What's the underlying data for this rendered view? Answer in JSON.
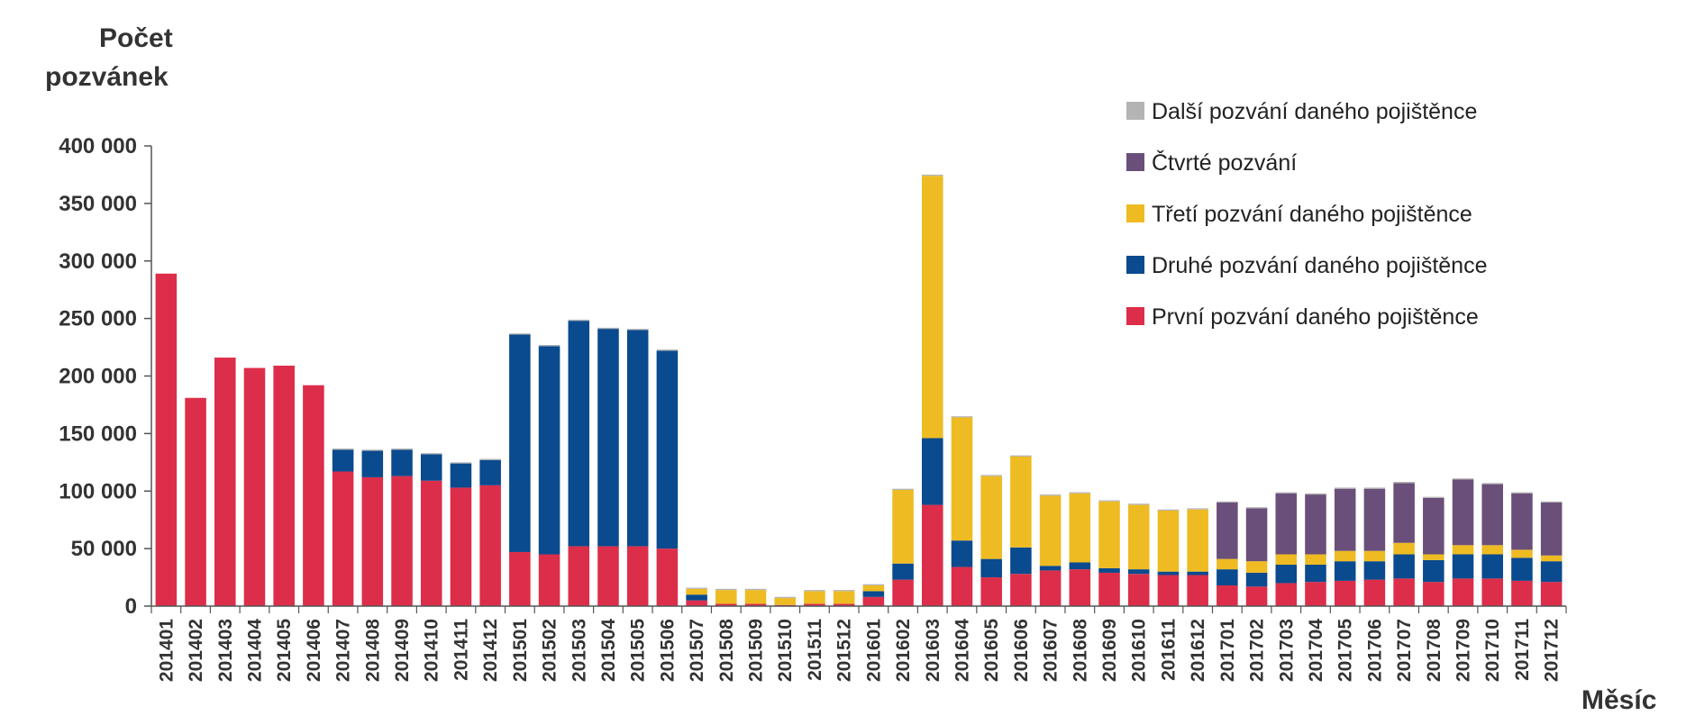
{
  "chart_data": {
    "type": "bar",
    "stacked": true,
    "ylabel": "Počet pozvánek",
    "ylabel_lines": [
      "Počet",
      "pozvánek"
    ],
    "xlabel": "Měsíc",
    "ylim": [
      0,
      400000
    ],
    "yticks": [
      {
        "value": 0,
        "label": "0"
      },
      {
        "value": 50000,
        "label": "50 000"
      },
      {
        "value": 100000,
        "label": "100 000"
      },
      {
        "value": 150000,
        "label": "150 000"
      },
      {
        "value": 200000,
        "label": "200 000"
      },
      {
        "value": 250000,
        "label": "250 000"
      },
      {
        "value": 300000,
        "label": "300 000"
      },
      {
        "value": 350000,
        "label": "350 000"
      },
      {
        "value": 400000,
        "label": "400 000"
      }
    ],
    "legend_position": "top-right",
    "categories": [
      "201401",
      "201402",
      "201403",
      "201404",
      "201405",
      "201406",
      "201407",
      "201408",
      "201409",
      "201410",
      "201411",
      "201412",
      "201501",
      "201502",
      "201503",
      "201504",
      "201505",
      "201506",
      "201507",
      "201508",
      "201509",
      "201510",
      "201511",
      "201512",
      "201601",
      "201602",
      "201603",
      "201604",
      "201605",
      "201606",
      "201607",
      "201608",
      "201609",
      "201610",
      "201611",
      "201612",
      "201701",
      "201702",
      "201703",
      "201704",
      "201705",
      "201706",
      "201707",
      "201708",
      "201709",
      "201710",
      "201711",
      "201712"
    ],
    "series": [
      {
        "name": "První pozvání daného pojištěnce",
        "color": "#DC2E4A",
        "values": [
          289000,
          181000,
          216000,
          207000,
          209000,
          192000,
          117000,
          112000,
          113000,
          109000,
          103000,
          105000,
          47000,
          45000,
          52000,
          52000,
          52000,
          50000,
          5000,
          2000,
          2000,
          1000,
          2000,
          2000,
          8000,
          23000,
          88000,
          34000,
          25000,
          28000,
          31000,
          32000,
          29000,
          28000,
          27000,
          27000,
          18000,
          17000,
          20000,
          21000,
          22000,
          23000,
          24000,
          21000,
          24000,
          24000,
          22000,
          21000
        ]
      },
      {
        "name": "Druhé pozvání daného pojištěnce",
        "color": "#0A4A8E",
        "values": [
          0,
          0,
          0,
          0,
          0,
          0,
          19000,
          23000,
          23000,
          23000,
          21000,
          22000,
          189000,
          181000,
          196000,
          189000,
          188000,
          172000,
          5000,
          0,
          0,
          0,
          0,
          0,
          5000,
          14000,
          58000,
          23000,
          16000,
          23000,
          4000,
          6000,
          4000,
          4000,
          3000,
          3000,
          14000,
          12000,
          16000,
          15000,
          17000,
          16000,
          21000,
          19000,
          21000,
          21000,
          20000,
          18000
        ]
      },
      {
        "name": "Třetí pozvání daného pojištěnce",
        "color": "#EEBB22",
        "values": [
          0,
          0,
          0,
          0,
          0,
          0,
          0,
          0,
          0,
          0,
          0,
          0,
          0,
          0,
          0,
          0,
          0,
          0,
          5000,
          12000,
          12000,
          6000,
          11000,
          11000,
          5000,
          64000,
          228000,
          107000,
          72000,
          79000,
          61000,
          60000,
          58000,
          56000,
          53000,
          54000,
          9000,
          10000,
          9000,
          9000,
          9000,
          9000,
          10000,
          5000,
          8000,
          8000,
          7000,
          5000
        ]
      },
      {
        "name": "Čtvrté pozvání",
        "color": "#6A4F7A",
        "values": [
          0,
          0,
          0,
          0,
          0,
          0,
          0,
          0,
          0,
          0,
          0,
          0,
          0,
          0,
          0,
          0,
          0,
          0,
          0,
          0,
          0,
          0,
          0,
          0,
          0,
          0,
          0,
          0,
          0,
          0,
          0,
          0,
          0,
          0,
          0,
          0,
          49000,
          46000,
          53000,
          52000,
          54000,
          54000,
          52000,
          49000,
          57000,
          53000,
          49000,
          46000
        ]
      },
      {
        "name": "Další pozvání daného pojištěnce",
        "color": "#B4B4B4",
        "values": [
          0,
          0,
          0,
          0,
          0,
          0,
          1000,
          1000,
          1000,
          1000,
          1000,
          1000,
          1000,
          1000,
          1000,
          1000,
          1000,
          1000,
          1000,
          1000,
          1000,
          1000,
          1000,
          1000,
          1000,
          1000,
          1000,
          1000,
          1000,
          1000,
          1000,
          1000,
          1000,
          1000,
          1000,
          1000,
          1000,
          1000,
          1000,
          1000,
          1000,
          1000,
          1000,
          1000,
          1000,
          1000,
          1000,
          1000
        ]
      }
    ],
    "legend_order": [
      "Další pozvání daného pojištěnce",
      "Čtvrté pozvání",
      "Třetí pozvání daného pojištěnce",
      "Druhé pozvání daného pojištěnce",
      "První pozvání daného pojištěnce"
    ]
  }
}
